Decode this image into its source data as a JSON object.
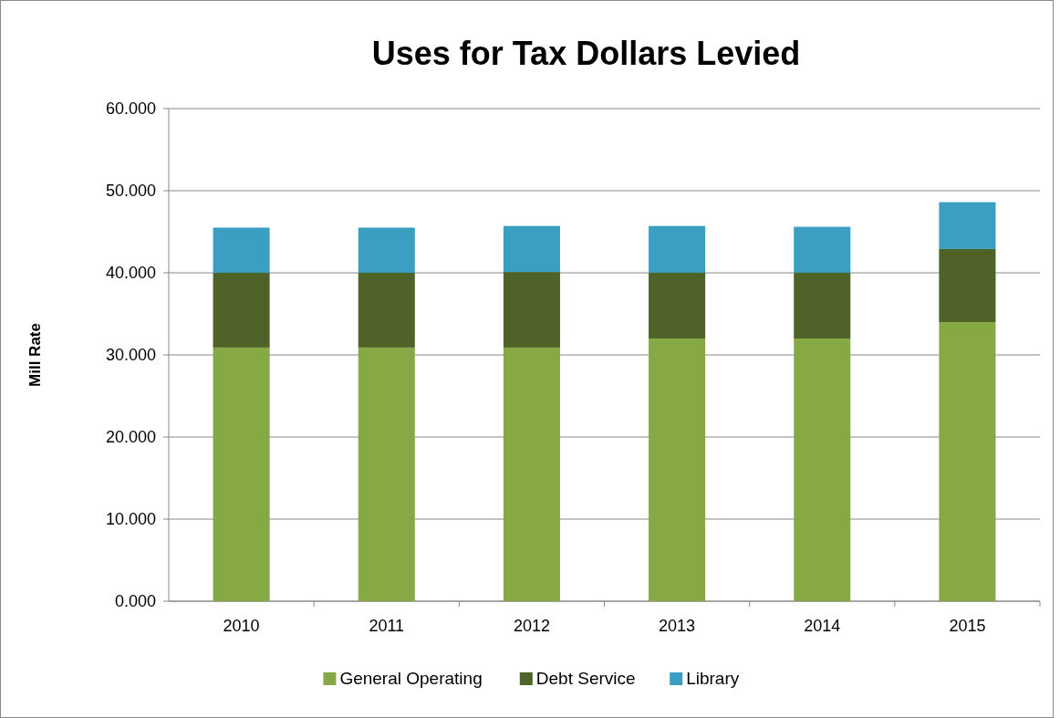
{
  "chart_data": {
    "type": "bar",
    "title": "Uses for Tax Dollars Levied",
    "ylabel": "Mill Rate",
    "categories": [
      "2010",
      "2011",
      "2012",
      "2013",
      "2014",
      "2015"
    ],
    "stacked": true,
    "series": [
      {
        "name": "General Operating",
        "color": "#86a845",
        "values": [
          30.9,
          30.9,
          30.9,
          32.0,
          32.0,
          34.0
        ]
      },
      {
        "name": "Debt Service",
        "color": "#4f6228",
        "values": [
          9.1,
          9.1,
          9.2,
          8.0,
          8.0,
          8.9
        ]
      },
      {
        "name": "Library",
        "color": "#3a9fc0",
        "values": [
          5.5,
          5.5,
          5.6,
          5.7,
          5.6,
          5.7
        ]
      }
    ],
    "ylim": [
      0,
      60
    ],
    "yticks": [
      {
        "value": 0,
        "label": "0.000"
      },
      {
        "value": 10,
        "label": "10.000"
      },
      {
        "value": 20,
        "label": "20.000"
      },
      {
        "value": 30,
        "label": "30.000"
      },
      {
        "value": 40,
        "label": "40.000"
      },
      {
        "value": 50,
        "label": "50.000"
      },
      {
        "value": 60,
        "label": "60.000"
      }
    ],
    "grid": "y",
    "legend": "bottom"
  }
}
